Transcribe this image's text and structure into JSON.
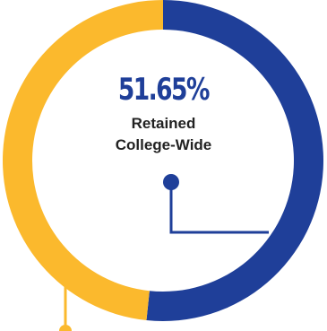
{
  "chart_data": {
    "type": "pie",
    "style": "donut",
    "slices": [
      {
        "label": "Retained College-Wide",
        "value": 51.65,
        "color": "#1f3f99"
      },
      {
        "label": "",
        "value": 48.35,
        "color": "#fbb92d"
      }
    ],
    "center": {
      "value_text": "51.65%",
      "label_line1": "Retained",
      "label_line2": "College-Wide"
    }
  },
  "colors": {
    "retained": "#1f3f99",
    "other": "#fbb92d",
    "label_text": "#222222"
  }
}
